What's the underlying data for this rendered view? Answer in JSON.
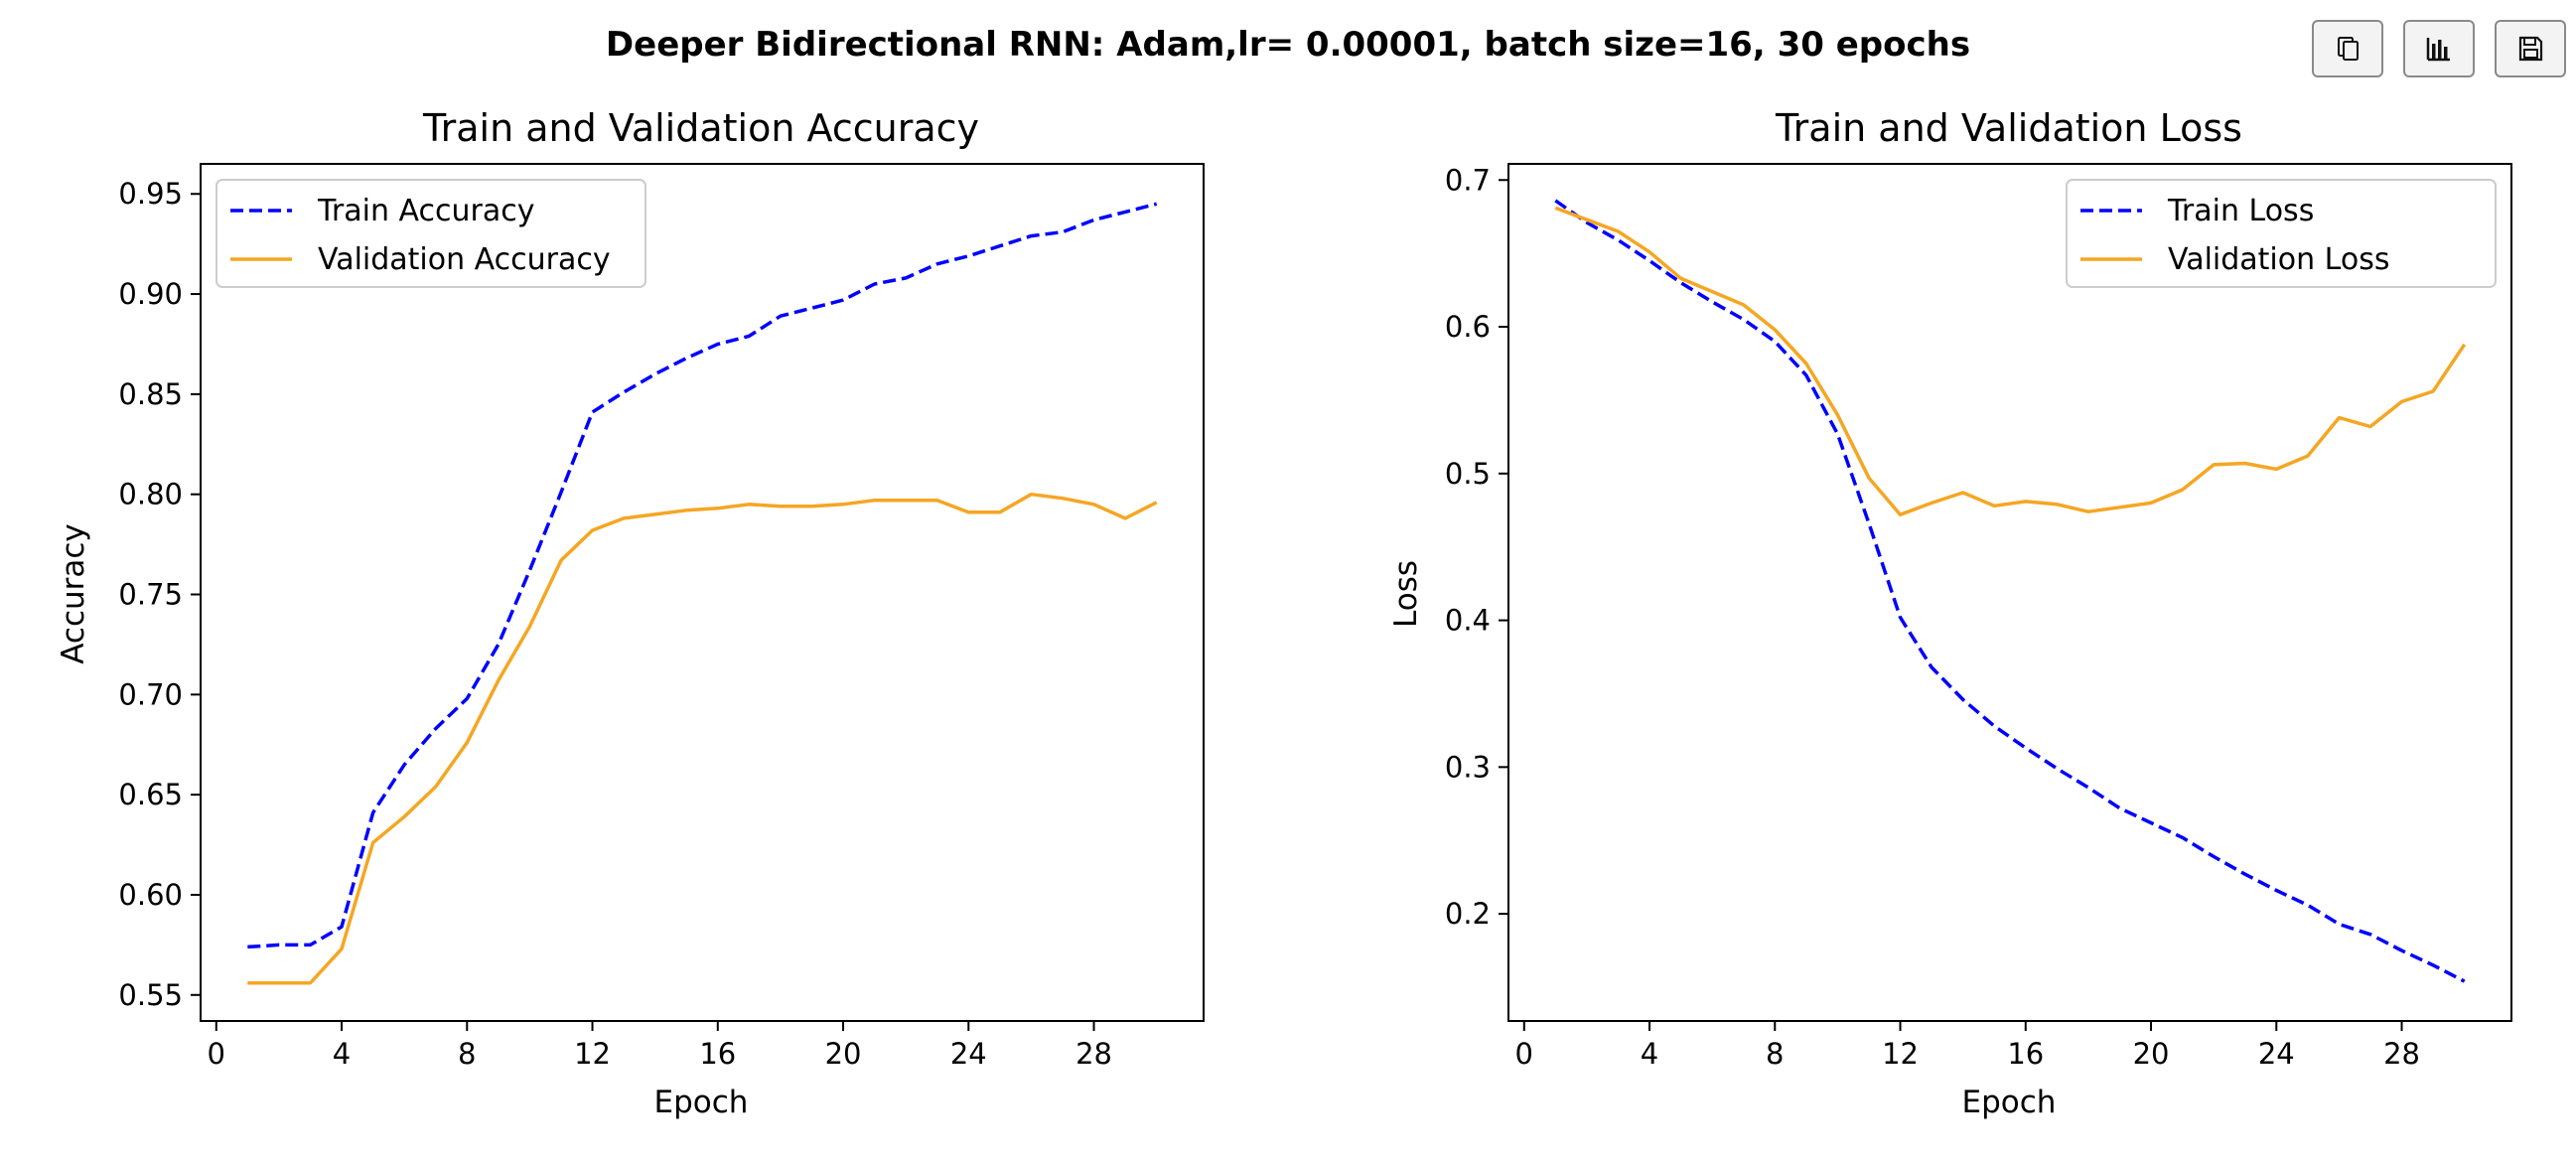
{
  "suptitle": "Deeper Bidirectional RNN: Adam,lr= 0.00001, batch size=16, 30 epochs",
  "toolbar": {
    "buttons": [
      {
        "name": "copy-button",
        "icon": "copy-icon"
      },
      {
        "name": "chart-button",
        "icon": "bar-chart-icon"
      },
      {
        "name": "save-button",
        "icon": "save-icon"
      }
    ]
  },
  "chart_data": [
    {
      "type": "line",
      "title": "Train and Validation Accuracy",
      "xlabel": "Epoch",
      "ylabel": "Accuracy",
      "xlim": [
        -0.5,
        31.5
      ],
      "ylim": [
        0.537,
        0.965
      ],
      "xticks": [
        0,
        4,
        8,
        12,
        16,
        20,
        24,
        28
      ],
      "yticks": [
        0.55,
        0.6,
        0.65,
        0.7,
        0.75,
        0.8,
        0.85,
        0.9,
        0.95
      ],
      "ytick_labels": [
        "0.55",
        "0.60",
        "0.65",
        "0.70",
        "0.75",
        "0.80",
        "0.85",
        "0.90",
        "0.95"
      ],
      "grid": false,
      "legend": "upper-left",
      "x": [
        1,
        2,
        3,
        4,
        5,
        6,
        7,
        8,
        9,
        10,
        11,
        12,
        13,
        14,
        15,
        16,
        17,
        18,
        19,
        20,
        21,
        22,
        23,
        24,
        25,
        26,
        27,
        28,
        29,
        30
      ],
      "series": [
        {
          "name": "Train Accuracy",
          "color": "#0000ff",
          "style": "dashed",
          "values": [
            0.574,
            0.575,
            0.575,
            0.584,
            0.641,
            0.665,
            0.683,
            0.698,
            0.725,
            0.762,
            0.801,
            0.841,
            0.851,
            0.86,
            0.868,
            0.875,
            0.879,
            0.889,
            0.893,
            0.897,
            0.905,
            0.908,
            0.915,
            0.919,
            0.924,
            0.929,
            0.931,
            0.937,
            0.941,
            0.945
          ]
        },
        {
          "name": "Validation Accuracy",
          "color": "#f5a623",
          "style": "solid",
          "values": [
            0.556,
            0.556,
            0.556,
            0.573,
            0.626,
            0.639,
            0.654,
            0.676,
            0.707,
            0.734,
            0.767,
            0.782,
            0.788,
            0.79,
            0.792,
            0.793,
            0.795,
            0.794,
            0.794,
            0.795,
            0.797,
            0.797,
            0.797,
            0.791,
            0.791,
            0.8,
            0.798,
            0.795,
            0.788,
            0.796
          ]
        }
      ]
    },
    {
      "type": "line",
      "title": "Train and Validation Loss",
      "xlabel": "Epoch",
      "ylabel": "Loss",
      "xlim": [
        -0.5,
        31.5
      ],
      "ylim": [
        0.127,
        0.711
      ],
      "xticks": [
        0,
        4,
        8,
        12,
        16,
        20,
        24,
        28
      ],
      "yticks": [
        0.2,
        0.3,
        0.4,
        0.5,
        0.6,
        0.7
      ],
      "ytick_labels": [
        "0.2",
        "0.3",
        "0.4",
        "0.5",
        "0.6",
        "0.7"
      ],
      "grid": false,
      "legend": "upper-right",
      "x": [
        1,
        2,
        3,
        4,
        5,
        6,
        7,
        8,
        9,
        10,
        11,
        12,
        13,
        14,
        15,
        16,
        17,
        18,
        19,
        20,
        21,
        22,
        23,
        24,
        25,
        26,
        27,
        28,
        29,
        30
      ],
      "series": [
        {
          "name": "Train Loss",
          "color": "#0000ff",
          "style": "dashed",
          "values": [
            0.686,
            0.671,
            0.659,
            0.645,
            0.63,
            0.617,
            0.605,
            0.59,
            0.567,
            0.527,
            0.466,
            0.402,
            0.368,
            0.346,
            0.328,
            0.313,
            0.299,
            0.286,
            0.272,
            0.262,
            0.252,
            0.239,
            0.227,
            0.216,
            0.206,
            0.193,
            0.186,
            0.175,
            0.165,
            0.154
          ]
        },
        {
          "name": "Validation Loss",
          "color": "#f5a623",
          "style": "solid",
          "values": [
            0.681,
            0.673,
            0.665,
            0.651,
            0.633,
            0.624,
            0.615,
            0.598,
            0.575,
            0.54,
            0.497,
            0.472,
            0.48,
            0.487,
            0.478,
            0.481,
            0.479,
            0.474,
            0.477,
            0.48,
            0.489,
            0.506,
            0.507,
            0.503,
            0.512,
            0.538,
            0.532,
            0.549,
            0.556,
            0.588
          ]
        }
      ]
    }
  ]
}
